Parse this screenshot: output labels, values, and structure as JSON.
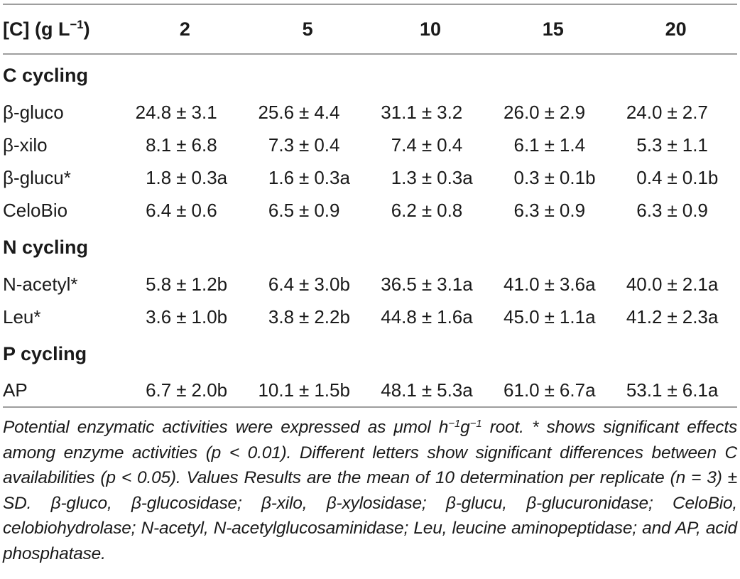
{
  "colors": {
    "rule": "#9e9e9e",
    "text": "#1a1a1a"
  },
  "table": {
    "header": {
      "concentration_label": {
        "prefix": "[C] (g L",
        "sup": "−1",
        "suffix": ")"
      },
      "columns": [
        "2",
        "5",
        "10",
        "15",
        "20"
      ]
    },
    "sections": [
      {
        "label": "C cycling",
        "rows": [
          {
            "label": "β-gluco",
            "values": [
              "24.8 ± 3.1",
              "25.6 ± 4.4",
              "31.1 ± 3.2",
              "26.0 ± 2.9",
              "24.0 ± 2.7"
            ]
          },
          {
            "label": "β-xilo",
            "values": [
              "8.1 ± 6.8",
              "7.3 ± 0.4",
              "7.4 ± 0.4",
              "6.1 ± 1.4",
              "5.3 ± 1.1"
            ]
          },
          {
            "label": "β-glucu*",
            "values": [
              "1.8 ± 0.3a",
              "1.6 ± 0.3a",
              "1.3 ± 0.3a",
              "0.3 ± 0.1b",
              "0.4 ± 0.1b"
            ]
          },
          {
            "label": "CeloBio",
            "values": [
              "6.4 ± 0.6",
              "6.5 ± 0.9",
              "6.2 ± 0.8",
              "6.3 ± 0.9",
              "6.3 ± 0.9"
            ]
          }
        ]
      },
      {
        "label": "N cycling",
        "rows": [
          {
            "label": "N-acetyl*",
            "values": [
              "5.8 ± 1.2b",
              "6.4 ± 3.0b",
              "36.5 ± 3.1a",
              "41.0 ± 3.6a",
              "40.0 ± 2.1a"
            ]
          },
          {
            "label": "Leu*",
            "values": [
              "3.6 ± 1.0b",
              "3.8 ± 2.2b",
              "44.8 ± 1.6a",
              "45.0 ± 1.1a",
              "41.2 ± 2.3a"
            ]
          }
        ]
      },
      {
        "label": "P cycling",
        "rows": [
          {
            "label": "AP",
            "values": [
              "6.7 ± 2.0b",
              "10.1 ± 1.5b",
              "48.1 ± 5.3a",
              "61.0 ± 6.7a",
              "53.1 ± 6.1a"
            ]
          }
        ]
      }
    ]
  },
  "footnote": {
    "segments": [
      {
        "text": "Potential enzymatic activities were expressed as μmol h"
      },
      {
        "sup": "−1"
      },
      {
        "text": "g"
      },
      {
        "sup": "−1"
      },
      {
        "text": " root. * shows significant effects among enzyme activities (p < 0.01). Different letters show significant differences between C availabilities (p < 0.05). Values Results are the mean of 10 determination per replicate (n = 3) ± SD. β-gluco, β-glucosidase; β-xilo, β-xylosidase; β-glucu, β-glucuronidase; CeloBio, celobiohydrolase; N-acetyl, N-acetylglucosaminidase; Leu, leucine aminopeptidase; and AP, acid phosphatase."
      }
    ]
  }
}
